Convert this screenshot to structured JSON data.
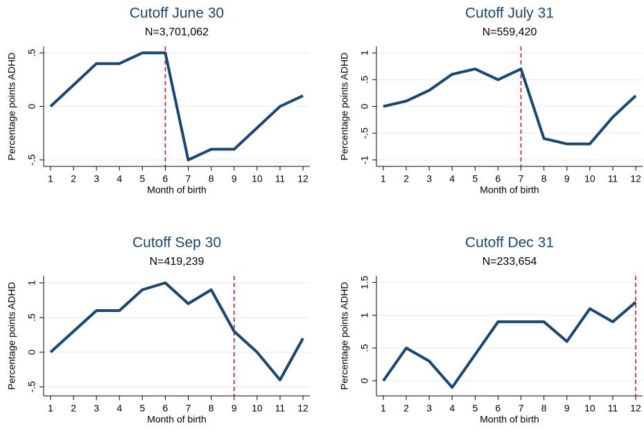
{
  "chart_data": [
    {
      "type": "line",
      "title": "Cutoff June 30",
      "subtitle": "N=3,701,062",
      "ylabel": "Percentage points ADHD",
      "xlabel": "Month of birth",
      "x": [
        1,
        2,
        3,
        4,
        5,
        6,
        7,
        8,
        9,
        10,
        11,
        12
      ],
      "values": [
        0,
        0.2,
        0.4,
        0.4,
        0.5,
        0.5,
        -0.5,
        -0.4,
        -0.4,
        -0.2,
        0,
        0.1
      ],
      "color": "#1a476f",
      "xlim": [
        0.7,
        12.3
      ],
      "xticks": [
        1,
        2,
        3,
        4,
        5,
        6,
        7,
        8,
        9,
        10,
        11,
        12
      ],
      "ylim": [
        -0.56,
        0.56
      ],
      "yticks": [
        {
          "value": -0.5,
          "label": "-.5"
        },
        0,
        {
          "value": 0.5,
          "label": ".5"
        }
      ],
      "grid": true,
      "vline": 6,
      "vline_color": "#c10534"
    },
    {
      "type": "line",
      "title": "Cutoff July 31",
      "subtitle": "N=559,420",
      "ylabel": "Percentage points ADHD",
      "xlabel": "Month of birth",
      "x": [
        1,
        2,
        3,
        4,
        5,
        6,
        7,
        8,
        9,
        10,
        11,
        12
      ],
      "values": [
        0,
        0.1,
        0.3,
        0.6,
        0.7,
        0.5,
        0.7,
        -0.6,
        -0.7,
        -0.7,
        -0.2,
        0.2
      ],
      "color": "#1a476f",
      "xlim": [
        0.7,
        12.3
      ],
      "xticks": [
        1,
        2,
        3,
        4,
        5,
        6,
        7,
        8,
        9,
        10,
        11,
        12
      ],
      "ylim": [
        -1.12,
        1.12
      ],
      "yticks": [
        -1,
        {
          "value": -0.5,
          "label": "-.5"
        },
        0,
        {
          "value": 0.5,
          "label": ".5"
        },
        1
      ],
      "grid": true,
      "vline": 7,
      "vline_color": "#c10534"
    },
    {
      "type": "line",
      "title": "Cutoff Sep 30",
      "subtitle": "N=419,239",
      "ylabel": "Percentage points ADHD",
      "xlabel": "Month of birth",
      "x": [
        1,
        2,
        3,
        4,
        5,
        6,
        7,
        8,
        9,
        10,
        11,
        12
      ],
      "values": [
        0,
        0.3,
        0.6,
        0.6,
        0.9,
        1,
        0.7,
        0.9,
        0.3,
        0,
        -0.4,
        0.2
      ],
      "color": "#1a476f",
      "xlim": [
        0.7,
        12.3
      ],
      "xticks": [
        1,
        2,
        3,
        4,
        5,
        6,
        7,
        8,
        9,
        10,
        11,
        12
      ],
      "ylim": [
        -0.63,
        1.1
      ],
      "yticks": [
        {
          "value": -0.5,
          "label": "-.5"
        },
        0,
        {
          "value": 0.5,
          "label": ".5"
        },
        1
      ],
      "grid": true,
      "vline": 9,
      "vline_color": "#c10534"
    },
    {
      "type": "line",
      "title": "Cutoff Dec 31",
      "subtitle": "N=233,654",
      "ylabel": "Percentage points ADHD",
      "xlabel": "Month of birth",
      "x": [
        1,
        2,
        3,
        4,
        5,
        6,
        7,
        8,
        9,
        10,
        11,
        12
      ],
      "values": [
        0,
        0.5,
        0.3,
        -0.1,
        0.4,
        0.9,
        0.9,
        0.9,
        0.6,
        1.1,
        0.9,
        1.2
      ],
      "color": "#1a476f",
      "xlim": [
        0.7,
        12.3
      ],
      "xticks": [
        1,
        2,
        3,
        4,
        5,
        6,
        7,
        8,
        9,
        10,
        11,
        12
      ],
      "ylim": [
        -0.23,
        1.6
      ],
      "yticks": [
        0,
        {
          "value": 0.5,
          "label": ".5"
        },
        1,
        {
          "value": 1.5,
          "label": "1.5"
        }
      ],
      "grid": true,
      "vline": 12,
      "vline_color": "#c10534"
    }
  ]
}
